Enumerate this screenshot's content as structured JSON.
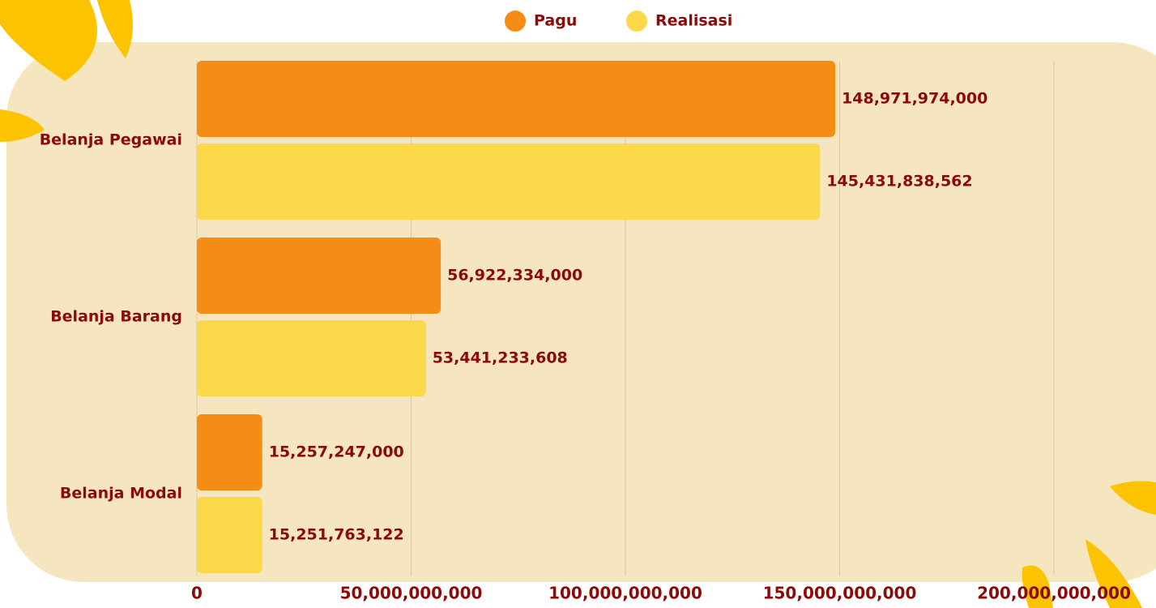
{
  "chart_data": {
    "type": "bar",
    "orientation": "horizontal",
    "categories": [
      "Belanja Pegawai",
      "Belanja Barang",
      "Belanja Modal"
    ],
    "series": [
      {
        "name": "Pagu",
        "color": "#f58c16",
        "values": [
          148971974000,
          56922334000,
          15257247000
        ],
        "value_labels": [
          "148,971,974,000",
          "56,922,334,000",
          "15,257,247,000"
        ]
      },
      {
        "name": "Realisasi",
        "color": "#fcd94a",
        "values": [
          145431838562,
          53441233608,
          15251763122
        ],
        "value_labels": [
          "145,431,838,562",
          "53,441,233,608",
          "15,251,763,122"
        ]
      }
    ],
    "xlim": [
      0,
      200000000000
    ],
    "xticks": [
      0,
      {
        "value": 50000000000,
        "label": "50,000,000,000"
      },
      {
        "value": 100000000000,
        "label": "100,000,000,000"
      },
      {
        "value": 150000000000,
        "label": "150,000,000,000"
      },
      {
        "value": 200000000000,
        "label": "200,000,000,000"
      }
    ],
    "grid": true,
    "legend": "top"
  }
}
